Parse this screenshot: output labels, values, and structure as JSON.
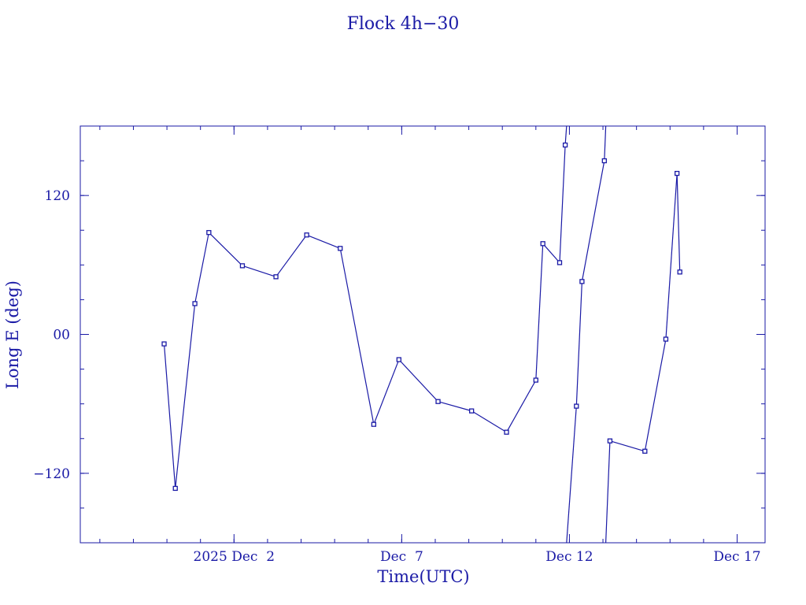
{
  "chart_data": {
    "type": "line",
    "title": "Flock 4h−30",
    "xlabel": "Time(UTC)",
    "ylabel": "Long E (deg)",
    "color": "#1a1aa6",
    "xlim": [
      "2025-11-27T10:00:00Z",
      "2025-12-17T20:00:00Z"
    ],
    "ylim": [
      -180,
      180
    ],
    "wrap": true,
    "grid": false,
    "x_major_ticks": [
      {
        "date": "2025-12-02T00:00:00Z",
        "label": "2025 Dec  2"
      },
      {
        "date": "2025-12-07T00:00:00Z",
        "label": "Dec  7"
      },
      {
        "date": "2025-12-12T00:00:00Z",
        "label": "Dec 12"
      },
      {
        "date": "2025-12-17T00:00:00Z",
        "label": "Dec 17"
      }
    ],
    "x_minor_tick_interval_days": 1,
    "y_major_ticks": [
      {
        "value": 120,
        "label": "120"
      },
      {
        "value": 0,
        "label": "00"
      },
      {
        "value": -120,
        "label": "−120"
      }
    ],
    "y_minor_tick_interval": 30,
    "points": [
      {
        "t": "2025-11-29T22:00:00Z",
        "lon": -8.2
      },
      {
        "t": "2025-11-30T06:00:00Z",
        "lon": -133.0
      },
      {
        "t": "2025-11-30T20:00:00Z",
        "lon": 26.6
      },
      {
        "t": "2025-12-01T06:00:00Z",
        "lon": 88.0
      },
      {
        "t": "2025-12-02T06:00:00Z",
        "lon": 59.3
      },
      {
        "t": "2025-12-03T06:00:00Z",
        "lon": 49.8
      },
      {
        "t": "2025-12-04T04:00:00Z",
        "lon": 85.9
      },
      {
        "t": "2025-12-05T04:00:00Z",
        "lon": 74.3
      },
      {
        "t": "2025-12-06T04:00:00Z",
        "lon": -77.7
      },
      {
        "t": "2025-12-06T22:00:00Z",
        "lon": -21.8
      },
      {
        "t": "2025-12-08T02:00:00Z",
        "lon": -58.0
      },
      {
        "t": "2025-12-09T02:00:00Z",
        "lon": -66.1
      },
      {
        "t": "2025-12-10T03:00:00Z",
        "lon": -84.5
      },
      {
        "t": "2025-12-11T00:00:00Z",
        "lon": -39.5
      },
      {
        "t": "2025-12-11T05:00:00Z",
        "lon": 78.4
      },
      {
        "t": "2025-12-11T17:00:00Z",
        "lon": 62.0
      },
      {
        "t": "2025-12-11T21:00:00Z",
        "lon": 163.6
      },
      {
        "t": "2025-12-12T05:00:00Z",
        "lon": -62.0
      },
      {
        "t": "2025-12-12T09:00:00Z",
        "lon": 45.7
      },
      {
        "t": "2025-12-13T01:00:00Z",
        "lon": 150.0
      },
      {
        "t": "2025-12-13T05:00:00Z",
        "lon": -92.0
      },
      {
        "t": "2025-12-14T06:00:00Z",
        "lon": -100.9
      },
      {
        "t": "2025-12-14T21:00:00Z",
        "lon": -4.1
      },
      {
        "t": "2025-12-15T05:00:00Z",
        "lon": 139.1
      },
      {
        "t": "2025-12-15T07:00:00Z",
        "lon": 53.9
      }
    ]
  }
}
